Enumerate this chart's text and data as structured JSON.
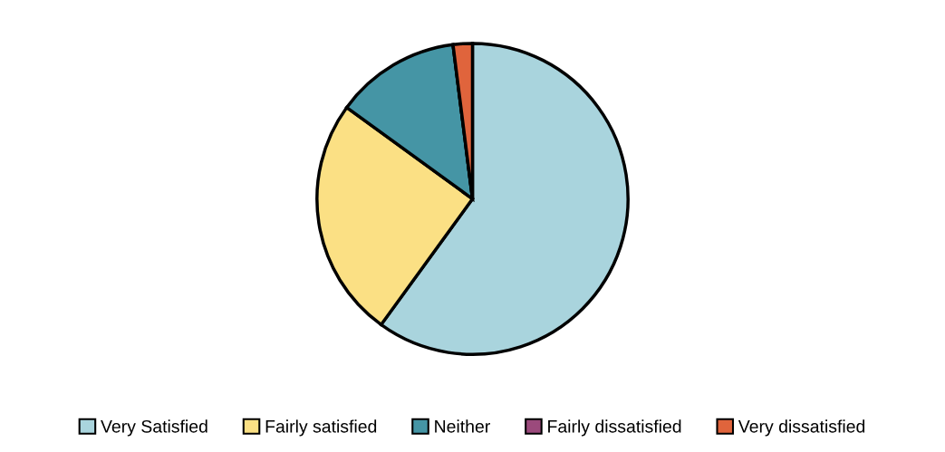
{
  "chart_data": {
    "type": "pie",
    "categories": [
      "Very Satisfied",
      "Fairly satisfied",
      "Neither",
      "Fairly dissatisfied",
      "Very dissatisfied"
    ],
    "values": [
      60,
      25,
      13,
      0,
      2
    ],
    "colors": [
      "#a9d4dd",
      "#fbe084",
      "#4595a5",
      "#9b4a7c",
      "#e0643c"
    ],
    "legend": "bottom"
  }
}
